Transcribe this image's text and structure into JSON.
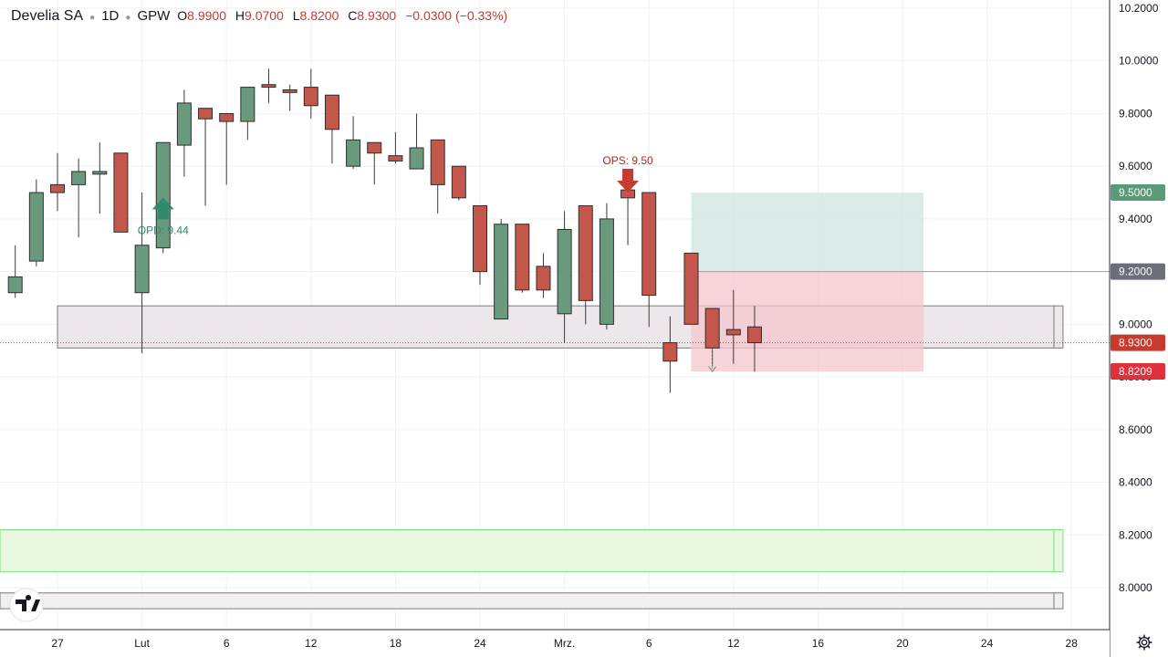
{
  "header": {
    "symbol": "Develia SA",
    "interval": "1D",
    "exchange": "GPW",
    "o_key": "O",
    "o_val": "8.9900",
    "h_key": "H",
    "h_val": "9.0700",
    "l_key": "L",
    "l_val": "8.8200",
    "c_key": "C",
    "c_val": "8.9300",
    "change": "−0.0300 (−0.33%)"
  },
  "colors": {
    "up": "#6a9a7e",
    "down": "#c4574b",
    "grid": "#eff1f4",
    "price_last": "#c93a2e",
    "target": "#5a9a78",
    "stop_zone": "#f4c6cc",
    "target_zone": "#cfe6e0",
    "support_zone": "#e8f9e0"
  },
  "icons": {
    "logo": "tradingview-logo-icon",
    "settings": "gear-icon"
  },
  "chart_data": {
    "type": "candlestick",
    "title": "Develia SA · 1D · GPW",
    "ylim": [
      7.92,
      10.24
    ],
    "y_ticks": [
      "10.2000",
      "10.0000",
      "9.8000",
      "9.6000",
      "9.4000",
      "9.2000",
      "9.0000",
      "8.8000",
      "8.6000",
      "8.4000",
      "8.2000",
      "8.0000"
    ],
    "x_ticks": [
      {
        "label": "27",
        "t": 0
      },
      {
        "label": "Lut",
        "t": 4
      },
      {
        "label": "6",
        "t": 8
      },
      {
        "label": "12",
        "t": 12
      },
      {
        "label": "18",
        "t": 16
      },
      {
        "label": "24",
        "t": 20
      },
      {
        "label": "Mrz.",
        "t": 24
      },
      {
        "label": "6",
        "t": 28
      },
      {
        "label": "12",
        "t": 32
      },
      {
        "label": "16",
        "t": 36
      },
      {
        "label": "20",
        "t": 40
      },
      {
        "label": "24",
        "t": 44
      },
      {
        "label": "28",
        "t": 48
      }
    ],
    "candles": [
      {
        "t": -2,
        "o": 9.12,
        "h": 9.3,
        "l": 9.1,
        "c": 9.18
      },
      {
        "t": -1,
        "o": 9.24,
        "h": 9.55,
        "l": 9.22,
        "c": 9.5
      },
      {
        "t": 0,
        "o": 9.53,
        "h": 9.65,
        "l": 9.43,
        "c": 9.5
      },
      {
        "t": 1,
        "o": 9.53,
        "h": 9.63,
        "l": 9.33,
        "c": 9.58
      },
      {
        "t": 2,
        "o": 9.57,
        "h": 9.69,
        "l": 9.42,
        "c": 9.58
      },
      {
        "t": 3,
        "o": 9.65,
        "h": 9.65,
        "l": 9.35,
        "c": 9.35
      },
      {
        "t": 4,
        "o": 9.12,
        "h": 9.5,
        "l": 8.89,
        "c": 9.3
      },
      {
        "t": 5,
        "o": 9.29,
        "h": 9.69,
        "l": 9.27,
        "c": 9.69
      },
      {
        "t": 6,
        "o": 9.68,
        "h": 9.89,
        "l": 9.56,
        "c": 9.84
      },
      {
        "t": 7,
        "o": 9.82,
        "h": 9.82,
        "l": 9.45,
        "c": 9.78
      },
      {
        "t": 8,
        "o": 9.8,
        "h": 9.8,
        "l": 9.53,
        "c": 9.77
      },
      {
        "t": 9,
        "o": 9.77,
        "h": 9.9,
        "l": 9.7,
        "c": 9.9
      },
      {
        "t": 10,
        "o": 9.91,
        "h": 9.97,
        "l": 9.84,
        "c": 9.9
      },
      {
        "t": 11,
        "o": 9.89,
        "h": 9.91,
        "l": 9.81,
        "c": 9.88
      },
      {
        "t": 12,
        "o": 9.9,
        "h": 9.97,
        "l": 9.78,
        "c": 9.83
      },
      {
        "t": 13,
        "o": 9.87,
        "h": 9.87,
        "l": 9.61,
        "c": 9.74
      },
      {
        "t": 14,
        "o": 9.6,
        "h": 9.79,
        "l": 9.59,
        "c": 9.7
      },
      {
        "t": 15,
        "o": 9.69,
        "h": 9.69,
        "l": 9.53,
        "c": 9.65
      },
      {
        "t": 16,
        "o": 9.64,
        "h": 9.73,
        "l": 9.61,
        "c": 9.62
      },
      {
        "t": 17,
        "o": 9.59,
        "h": 9.8,
        "l": 9.59,
        "c": 9.67
      },
      {
        "t": 18,
        "o": 9.7,
        "h": 9.7,
        "l": 9.42,
        "c": 9.53
      },
      {
        "t": 19,
        "o": 9.6,
        "h": 9.6,
        "l": 9.47,
        "c": 9.48
      },
      {
        "t": 20,
        "o": 9.45,
        "h": 9.45,
        "l": 9.15,
        "c": 9.2
      },
      {
        "t": 21,
        "o": 9.02,
        "h": 9.4,
        "l": 9.02,
        "c": 9.38
      },
      {
        "t": 22,
        "o": 9.38,
        "h": 9.38,
        "l": 9.12,
        "c": 9.13
      },
      {
        "t": 23,
        "o": 9.22,
        "h": 9.27,
        "l": 9.1,
        "c": 9.13
      },
      {
        "t": 24,
        "o": 9.04,
        "h": 9.43,
        "l": 8.93,
        "c": 9.36
      },
      {
        "t": 25,
        "o": 9.45,
        "h": 9.45,
        "l": 9.0,
        "c": 9.09
      },
      {
        "t": 26,
        "o": 9.0,
        "h": 9.46,
        "l": 8.98,
        "c": 9.4
      },
      {
        "t": 27,
        "o": 9.51,
        "h": 9.51,
        "l": 9.3,
        "c": 9.48
      },
      {
        "t": 28,
        "o": 9.5,
        "h": 9.5,
        "l": 8.99,
        "c": 9.11
      },
      {
        "t": 29,
        "o": 8.93,
        "h": 9.03,
        "l": 8.74,
        "c": 8.86
      },
      {
        "t": 30,
        "o": 9.27,
        "h": 9.27,
        "l": 9.0,
        "c": 9.0
      },
      {
        "t": 31,
        "o": 9.06,
        "h": 9.06,
        "l": 8.84,
        "c": 8.91
      },
      {
        "t": 32,
        "o": 8.98,
        "h": 9.13,
        "l": 8.85,
        "c": 8.96
      },
      {
        "t": 33,
        "o": 8.99,
        "h": 9.07,
        "l": 8.82,
        "c": 8.93
      }
    ],
    "annotations": [
      {
        "label": "OPD: 9.44",
        "t": 5,
        "price": 9.44,
        "direction": "up"
      },
      {
        "label": "OPS: 9.50",
        "t": 27,
        "price": 9.5,
        "direction": "down"
      }
    ],
    "zones": [
      {
        "name": "resistance",
        "top": 9.07,
        "bottom": 8.91,
        "t0": 0,
        "t1": 47.6,
        "fill": "#ede6ea",
        "stroke": "#7a7a7a"
      },
      {
        "name": "support",
        "top": 8.22,
        "bottom": 8.06,
        "t0": -3,
        "t1": 47.6,
        "fill": "#e8f9e0",
        "stroke": "#7edc7e"
      },
      {
        "name": "lower",
        "top": 7.98,
        "bottom": 7.92,
        "t0": -3,
        "t1": 47.6,
        "fill": "#f3eef0",
        "stroke": "#7a7a7a"
      },
      {
        "name": "target",
        "top": 9.5,
        "bottom": 9.2,
        "t0": 30,
        "t1": 41,
        "fill": "#cfe6e0",
        "stroke": "none"
      },
      {
        "name": "stop",
        "top": 9.2,
        "bottom": 8.8209,
        "t0": 30,
        "t1": 41,
        "fill": "#f4c6cc",
        "stroke": "none"
      }
    ],
    "price_labels": [
      {
        "value": 9.5,
        "text": "9.5000",
        "bg": "#5a9a78",
        "fg": "#ffffff"
      },
      {
        "value": 9.2,
        "text": "9.2000",
        "bg": "#6b6f7a",
        "fg": "#ffffff"
      },
      {
        "value": 8.93,
        "text": "8.9300",
        "bg": "#c93a2e",
        "fg": "#ffffff"
      },
      {
        "value": 8.8209,
        "text": "8.8209",
        "bg": "#e0303c",
        "fg": "#ffffff"
      }
    ],
    "last_price": 8.93,
    "grid": true
  }
}
